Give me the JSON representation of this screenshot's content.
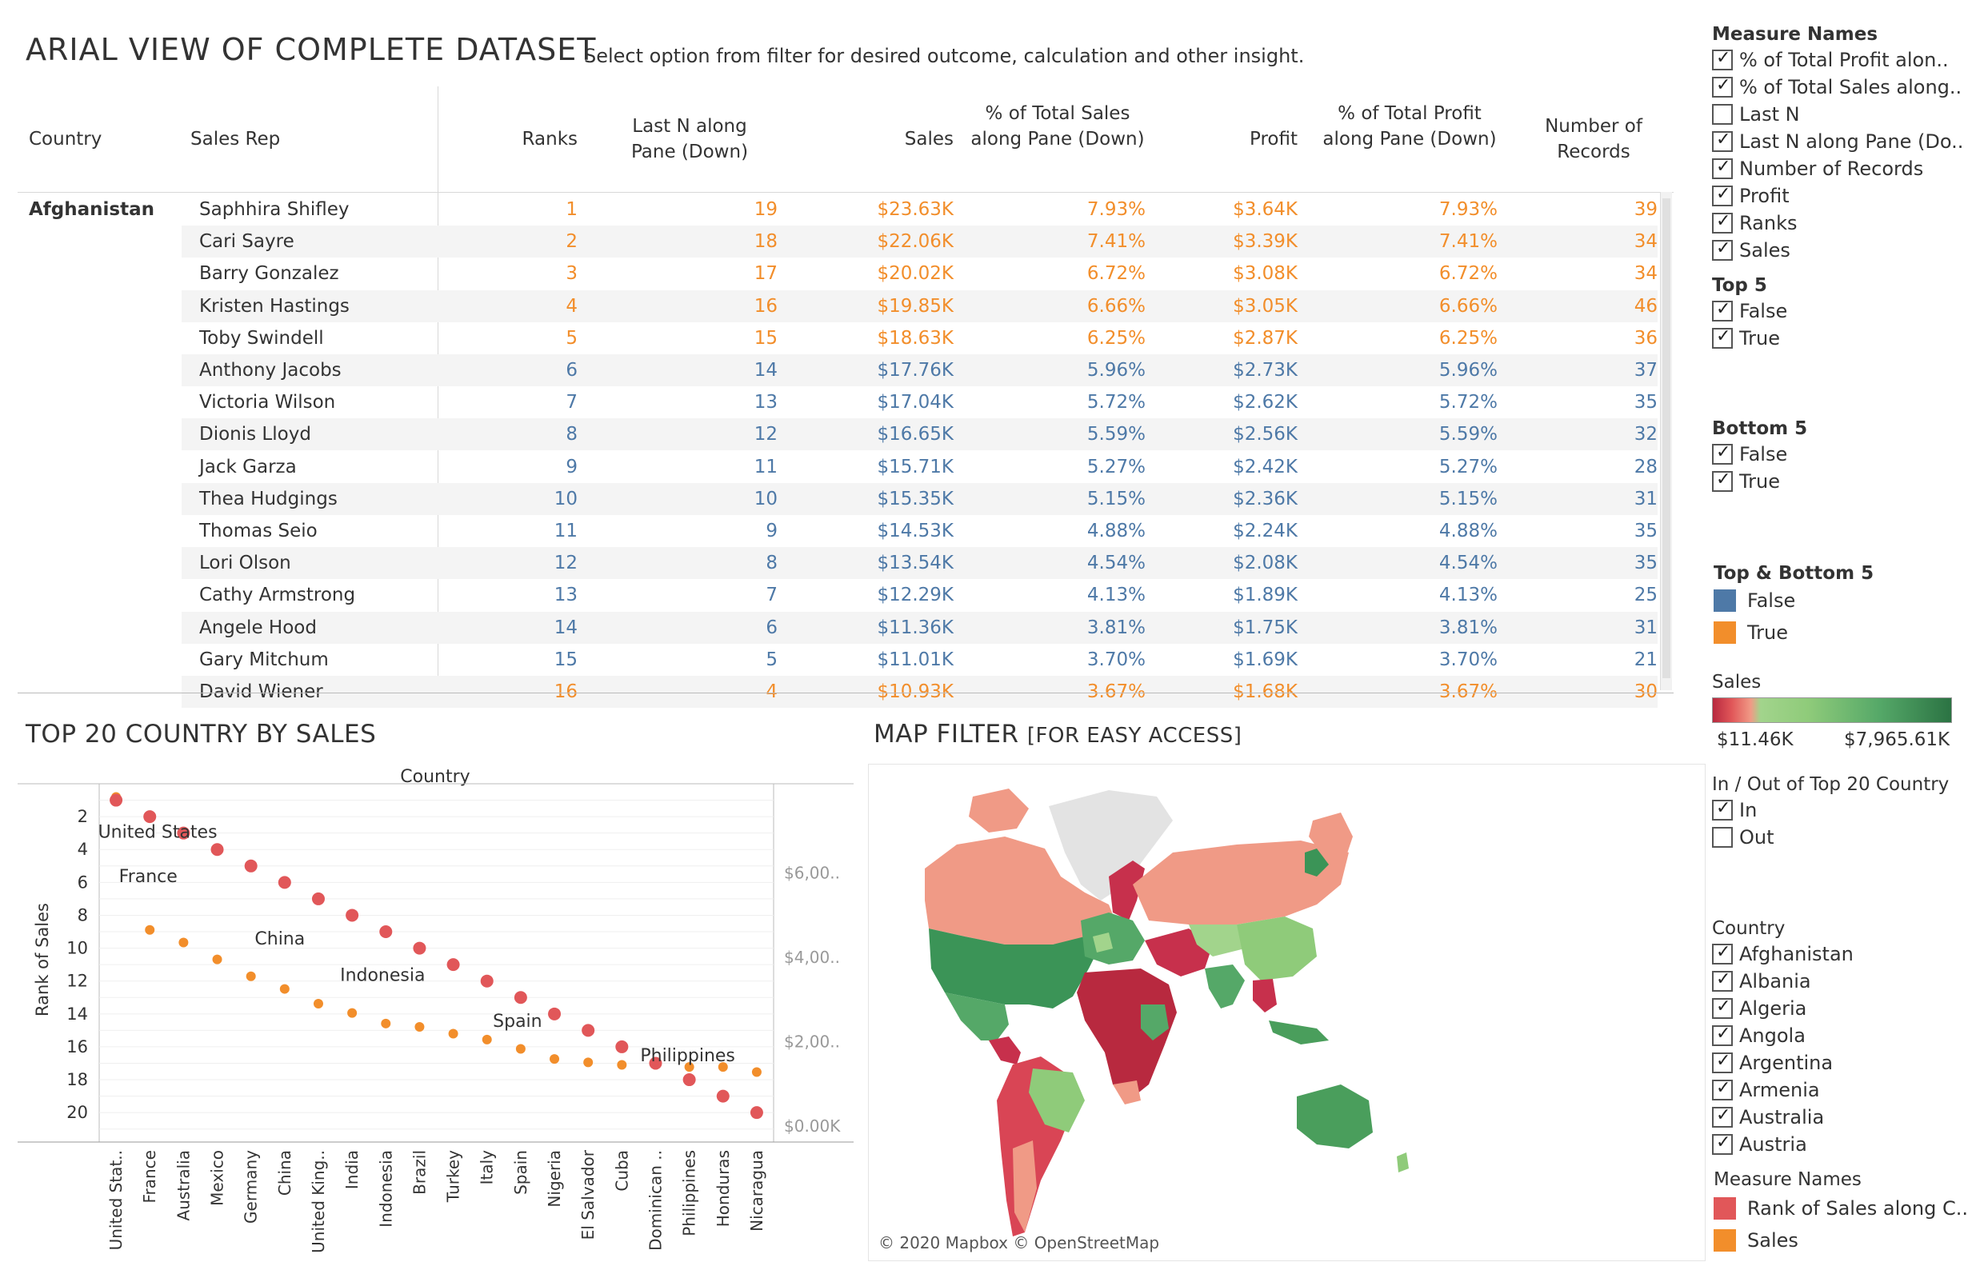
{
  "header": {
    "title": "ARIAL VIEW OF COMPLETE DATASET",
    "subtitle": "Select option from filter for desired outcome, calculation and other insight."
  },
  "table": {
    "columns": {
      "country": "Country",
      "sales_rep": "Sales Rep",
      "ranks": "Ranks",
      "last_n": "Last N along Pane (Down)",
      "sales": "Sales",
      "pct_sales": "% of Total Sales along Pane (Down)",
      "profit": "Profit",
      "pct_profit": "% of Total Profit along Pane (Down)",
      "records": "Number of Records"
    },
    "country_value": "Afghanistan",
    "rows": [
      {
        "rep": "Saphhira Shifley",
        "rank": "1",
        "lastn": "19",
        "sales": "$23.63K",
        "pct_sales": "7.93%",
        "profit": "$3.64K",
        "pct_profit": "7.93%",
        "records": "39",
        "top": true
      },
      {
        "rep": "Cari Sayre",
        "rank": "2",
        "lastn": "18",
        "sales": "$22.06K",
        "pct_sales": "7.41%",
        "profit": "$3.39K",
        "pct_profit": "7.41%",
        "records": "34",
        "top": true
      },
      {
        "rep": "Barry Gonzalez",
        "rank": "3",
        "lastn": "17",
        "sales": "$20.02K",
        "pct_sales": "6.72%",
        "profit": "$3.08K",
        "pct_profit": "6.72%",
        "records": "34",
        "top": true
      },
      {
        "rep": "Kristen Hastings",
        "rank": "4",
        "lastn": "16",
        "sales": "$19.85K",
        "pct_sales": "6.66%",
        "profit": "$3.05K",
        "pct_profit": "6.66%",
        "records": "46",
        "top": true
      },
      {
        "rep": "Toby Swindell",
        "rank": "5",
        "lastn": "15",
        "sales": "$18.63K",
        "pct_sales": "6.25%",
        "profit": "$2.87K",
        "pct_profit": "6.25%",
        "records": "36",
        "top": true
      },
      {
        "rep": "Anthony Jacobs",
        "rank": "6",
        "lastn": "14",
        "sales": "$17.76K",
        "pct_sales": "5.96%",
        "profit": "$2.73K",
        "pct_profit": "5.96%",
        "records": "37",
        "top": false
      },
      {
        "rep": "Victoria Wilson",
        "rank": "7",
        "lastn": "13",
        "sales": "$17.04K",
        "pct_sales": "5.72%",
        "profit": "$2.62K",
        "pct_profit": "5.72%",
        "records": "35",
        "top": false
      },
      {
        "rep": "Dionis Lloyd",
        "rank": "8",
        "lastn": "12",
        "sales": "$16.65K",
        "pct_sales": "5.59%",
        "profit": "$2.56K",
        "pct_profit": "5.59%",
        "records": "32",
        "top": false
      },
      {
        "rep": "Jack Garza",
        "rank": "9",
        "lastn": "11",
        "sales": "$15.71K",
        "pct_sales": "5.27%",
        "profit": "$2.42K",
        "pct_profit": "5.27%",
        "records": "28",
        "top": false
      },
      {
        "rep": "Thea Hudgings",
        "rank": "10",
        "lastn": "10",
        "sales": "$15.35K",
        "pct_sales": "5.15%",
        "profit": "$2.36K",
        "pct_profit": "5.15%",
        "records": "31",
        "top": false
      },
      {
        "rep": "Thomas Seio",
        "rank": "11",
        "lastn": "9",
        "sales": "$14.53K",
        "pct_sales": "4.88%",
        "profit": "$2.24K",
        "pct_profit": "4.88%",
        "records": "35",
        "top": false
      },
      {
        "rep": "Lori Olson",
        "rank": "12",
        "lastn": "8",
        "sales": "$13.54K",
        "pct_sales": "4.54%",
        "profit": "$2.08K",
        "pct_profit": "4.54%",
        "records": "35",
        "top": false
      },
      {
        "rep": "Cathy Armstrong",
        "rank": "13",
        "lastn": "7",
        "sales": "$12.29K",
        "pct_sales": "4.13%",
        "profit": "$1.89K",
        "pct_profit": "4.13%",
        "records": "25",
        "top": false
      },
      {
        "rep": "Angele Hood",
        "rank": "14",
        "lastn": "6",
        "sales": "$11.36K",
        "pct_sales": "3.81%",
        "profit": "$1.75K",
        "pct_profit": "3.81%",
        "records": "31",
        "top": false
      },
      {
        "rep": "Gary Mitchum",
        "rank": "15",
        "lastn": "5",
        "sales": "$11.01K",
        "pct_sales": "3.70%",
        "profit": "$1.69K",
        "pct_profit": "3.70%",
        "records": "21",
        "top": false
      },
      {
        "rep": "David Wiener",
        "rank": "16",
        "lastn": "4",
        "sales": "$10.93K",
        "pct_sales": "3.67%",
        "profit": "$1.68K",
        "pct_profit": "3.67%",
        "records": "30",
        "top": true
      }
    ]
  },
  "colors": {
    "top_bottom_true": "#f28e2b",
    "top_bottom_false": "#4e79a7",
    "rank_series": "#e15759",
    "sales_series": "#f28e2b"
  },
  "sidebar": {
    "measure_names": {
      "title": "Measure Names",
      "items": [
        {
          "label": "% of Total Profit alon..",
          "checked": true
        },
        {
          "label": "% of Total Sales along..",
          "checked": true
        },
        {
          "label": "Last N",
          "checked": false
        },
        {
          "label": "Last N along Pane (Do..",
          "checked": true
        },
        {
          "label": "Number of Records",
          "checked": true
        },
        {
          "label": "Profit",
          "checked": true
        },
        {
          "label": "Ranks",
          "checked": true
        },
        {
          "label": "Sales",
          "checked": true
        }
      ]
    },
    "top5": {
      "title": "Top 5",
      "items": [
        {
          "label": "False",
          "checked": true
        },
        {
          "label": "True",
          "checked": true
        }
      ]
    },
    "bottom5": {
      "title": "Bottom 5",
      "items": [
        {
          "label": "False",
          "checked": true
        },
        {
          "label": "True",
          "checked": true
        }
      ]
    },
    "topbottom": {
      "title": "Top & Bottom 5",
      "items": [
        {
          "label": "False"
        },
        {
          "label": "True"
        }
      ]
    },
    "sales_legend": {
      "title": "Sales",
      "min": "$11.46K",
      "max": "$7,965.61K"
    },
    "inout": {
      "title": "In / Out of Top 20 Country",
      "items": [
        {
          "label": "In",
          "checked": true
        },
        {
          "label": "Out",
          "checked": false
        }
      ]
    },
    "country": {
      "title": "Country",
      "items": [
        {
          "label": "Afghanistan",
          "checked": true
        },
        {
          "label": "Albania",
          "checked": true
        },
        {
          "label": "Algeria",
          "checked": true
        },
        {
          "label": "Angola",
          "checked": true
        },
        {
          "label": "Argentina",
          "checked": true
        },
        {
          "label": "Armenia",
          "checked": true
        },
        {
          "label": "Australia",
          "checked": true
        },
        {
          "label": "Austria",
          "checked": true
        }
      ]
    },
    "measure_legend": {
      "title": "Measure Names",
      "items": [
        {
          "label": "Rank of Sales along C.."
        },
        {
          "label": "Sales"
        }
      ]
    }
  },
  "scatter_title": "TOP 20 COUNTRY BY SALES",
  "map": {
    "title_main": "MAP FILTER",
    "title_sub": "[FOR EASY ACCESS]",
    "attribution": "© 2020 Mapbox © OpenStreetMap"
  },
  "chart_data": {
    "type": "scatter",
    "title": "",
    "top_label": "Country",
    "ylabel": "Rank of Sales",
    "ylim": [
      0,
      21.5
    ],
    "y_ticks": [
      "2",
      "4",
      "6",
      "8",
      "10",
      "12",
      "14",
      "16",
      "18",
      "20"
    ],
    "y2_ticks": [
      "$6,00..",
      "$4,00..",
      "$2,00..",
      "$0.00K"
    ],
    "categories": [
      "United Stat..",
      "France",
      "Australia",
      "Mexico",
      "Germany",
      "China",
      "United King..",
      "India",
      "Indonesia",
      "Brazil",
      "Turkey",
      "Italy",
      "Spain",
      "Nigeria",
      "El Salvador",
      "Cuba",
      "Dominican ..",
      "Philippines",
      "Honduras",
      "Nicaragua"
    ],
    "series": [
      {
        "name": "Rank of Sales along C..",
        "values": [
          1,
          2,
          3,
          4,
          5,
          6,
          7,
          8,
          9,
          10,
          11,
          12,
          13,
          14,
          15,
          16,
          17,
          18,
          19,
          20
        ]
      },
      {
        "name": "Sales",
        "values": [
          7800,
          4650,
          4350,
          3950,
          3550,
          3250,
          2900,
          2680,
          2430,
          2350,
          2190,
          2050,
          1830,
          1590,
          1510,
          1450,
          1450,
          1400,
          1400,
          1280
        ]
      }
    ],
    "annotations": [
      "United States",
      "France",
      "China",
      "Indonesia",
      "Spain",
      "Philippines"
    ]
  }
}
